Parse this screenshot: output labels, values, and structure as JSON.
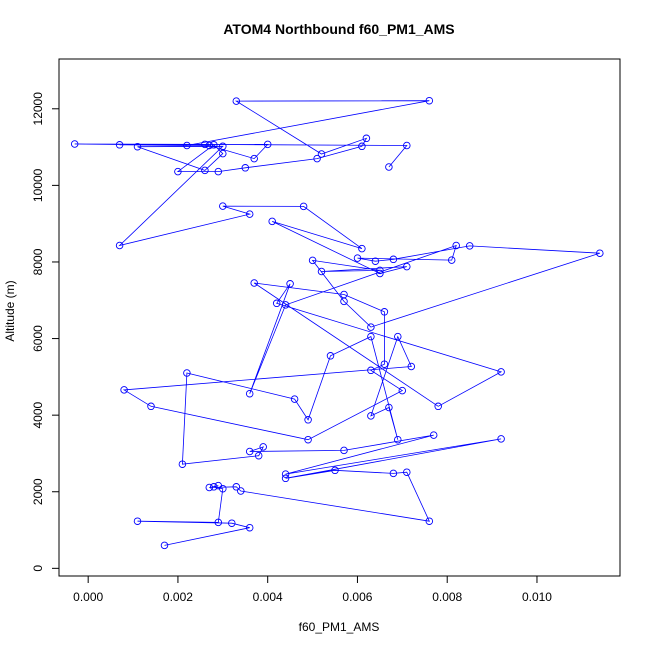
{
  "chart_data": {
    "type": "line",
    "title": "ATOM4 Northbound f60_PM1_AMS",
    "xlabel": "f60_PM1_AMS",
    "ylabel": "Altitude (m)",
    "xlim": [
      -0.00065,
      0.01185
    ],
    "ylim": [
      -200,
      13300
    ],
    "x_ticks": [
      0.0,
      0.002,
      0.004,
      0.006,
      0.008,
      0.01
    ],
    "x_tick_labels": [
      "0.000",
      "0.002",
      "0.004",
      "0.006",
      "0.008",
      "0.010"
    ],
    "y_ticks": [
      0,
      2000,
      4000,
      6000,
      8000,
      10000,
      12000
    ],
    "y_tick_labels": [
      "0",
      "2000",
      "4000",
      "6000",
      "8000",
      "10000",
      "12000"
    ],
    "grid": false,
    "legend": "none",
    "series": [
      {
        "color": "#0000ff",
        "marker": "open-circle",
        "points": [
          [
            0.0017,
            600
          ],
          [
            0.0036,
            1060
          ],
          [
            0.0032,
            1180
          ],
          [
            0.0011,
            1230
          ],
          [
            0.0029,
            1200
          ],
          [
            0.003,
            2080
          ],
          [
            0.0028,
            2130
          ],
          [
            0.0029,
            2160
          ],
          [
            0.0027,
            2110
          ],
          [
            0.0033,
            2130
          ],
          [
            0.0034,
            2020
          ],
          [
            0.0076,
            1230
          ],
          [
            0.0071,
            2510
          ],
          [
            0.0068,
            2480
          ],
          [
            0.0055,
            2560
          ],
          [
            0.0044,
            2350
          ],
          [
            0.0092,
            3380
          ],
          [
            0.0044,
            2460
          ],
          [
            0.0077,
            3480
          ],
          [
            0.0057,
            3080
          ],
          [
            0.0036,
            3050
          ],
          [
            0.0039,
            3170
          ],
          [
            0.0038,
            2940
          ],
          [
            0.0021,
            2720
          ],
          [
            0.0022,
            5100
          ],
          [
            0.0046,
            4420
          ],
          [
            0.0049,
            3880
          ],
          [
            0.0054,
            5550
          ],
          [
            0.0063,
            6050
          ],
          [
            0.0069,
            3360
          ],
          [
            0.0067,
            4200
          ],
          [
            0.0063,
            3980
          ],
          [
            0.0069,
            6050
          ],
          [
            0.0072,
            5270
          ],
          [
            0.0008,
            4660
          ],
          [
            0.0014,
            4230
          ],
          [
            0.0049,
            3360
          ],
          [
            0.007,
            4640
          ],
          [
            0.0063,
            5170
          ],
          [
            0.0066,
            5330
          ],
          [
            0.0066,
            6700
          ],
          [
            0.0057,
            7150
          ],
          [
            0.0037,
            7450
          ],
          [
            0.0078,
            4230
          ],
          [
            0.0092,
            5130
          ],
          [
            0.0042,
            6920
          ],
          [
            0.0045,
            7430
          ],
          [
            0.0036,
            4560
          ],
          [
            0.0044,
            6880
          ],
          [
            0.0082,
            8430
          ],
          [
            0.0081,
            8050
          ],
          [
            0.006,
            8100
          ],
          [
            0.0064,
            8020
          ],
          [
            0.0068,
            8070
          ],
          [
            0.0085,
            8420
          ],
          [
            0.0114,
            8230
          ],
          [
            0.0063,
            6300
          ],
          [
            0.0057,
            6970
          ],
          [
            0.005,
            8040
          ],
          [
            0.0065,
            7780
          ],
          [
            0.0052,
            7750
          ],
          [
            0.0071,
            7880
          ],
          [
            0.0065,
            7700
          ],
          [
            0.0041,
            9060
          ],
          [
            0.0061,
            8350
          ],
          [
            0.0048,
            9450
          ],
          [
            0.003,
            9460
          ],
          [
            0.0036,
            9250
          ],
          [
            0.0007,
            8430
          ],
          [
            0.003,
            11020
          ],
          [
            0.0011,
            11010
          ],
          [
            0.0026,
            10390
          ],
          [
            0.003,
            10830
          ],
          [
            0.0028,
            11060
          ],
          [
            0.002,
            10360
          ],
          [
            0.0029,
            10360
          ],
          [
            0.0035,
            10460
          ],
          [
            0.0051,
            10700
          ],
          [
            0.0061,
            11020
          ],
          [
            0.0062,
            11230
          ],
          [
            0.0052,
            10820
          ],
          [
            0.0033,
            12200
          ],
          [
            0.0076,
            12210
          ],
          [
            0.0022,
            11040
          ],
          [
            0.0007,
            11060
          ],
          [
            0.004,
            11070
          ],
          [
            0.0037,
            10700
          ],
          [
            0.0027,
            11040
          ],
          [
            -0.0003,
            11080
          ],
          [
            0.0026,
            11070
          ],
          [
            0.0071,
            11040
          ],
          [
            0.0067,
            10480
          ]
        ]
      }
    ]
  }
}
